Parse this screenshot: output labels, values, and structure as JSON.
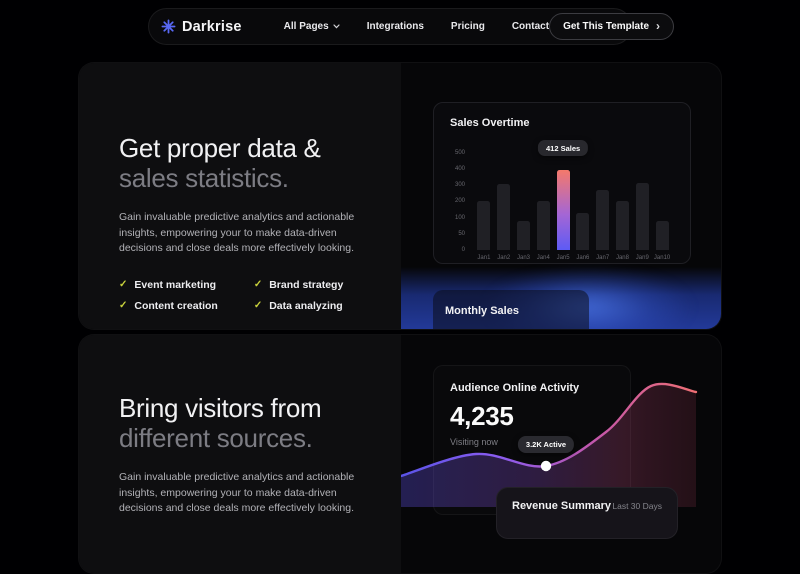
{
  "navbar": {
    "logo_text": "Darkrise",
    "items": [
      {
        "label": "All Pages"
      },
      {
        "label": "Integrations"
      },
      {
        "label": "Pricing"
      },
      {
        "label": "Contact"
      }
    ],
    "cta_label": "Get This Template",
    "cta_chevron": "›"
  },
  "sections": {
    "data": {
      "heading_line1": "Get proper data &",
      "heading_line2": "sales statistics.",
      "paragraph": "Gain invaluable predictive analytics and actionable insights, empowering your to make data-driven decisions and close deals more effectively looking.",
      "checklist_col1": [
        "Event marketing",
        "Content creation"
      ],
      "checklist_col2": [
        "Brand strategy",
        "Data analyzing"
      ],
      "check_glyph": "✓"
    },
    "visitors": {
      "heading_line1": "Bring visitors from",
      "heading_line2": "different sources.",
      "paragraph": "Gain invaluable predictive analytics and actionable insights, empowering your to make data-driven decisions and close deals more effectively looking."
    }
  },
  "monthly_sales_label": "Monthly Sales",
  "audience": {
    "title": "Audience Online Activity",
    "value": "4,235",
    "subtitle": "Visiting now",
    "tooltip": "3.2K Active"
  },
  "revenue": {
    "title": "Revenue Summary",
    "period": "Last 30 Days"
  },
  "colors": {
    "accent_blue": "#5868f5",
    "check_lime": "#c9d23c",
    "bar_default": "#202025",
    "monthly_glow_blue": "#2b4ac0",
    "tooltip_bg": "#28282d"
  },
  "chart_data": [
    {
      "type": "bar",
      "title": "Sales Overtime",
      "categories": [
        "Jan1",
        "Jan2",
        "Jan3",
        "Jan4",
        "Jan5",
        "Jan6",
        "Jan7",
        "Jan8",
        "Jan9",
        "Jan10"
      ],
      "values": [
        250,
        340,
        150,
        250,
        412,
        190,
        310,
        250,
        345,
        150
      ],
      "highlight_index": 4,
      "highlight_label": "412 Sales",
      "y_ticks": [
        "500",
        "400",
        "300",
        "200",
        "100",
        "50",
        "0"
      ],
      "ylim": [
        0,
        500
      ],
      "grid": false,
      "legend": false,
      "highlight_gradient": [
        "#f4796b",
        "#a566d4",
        "#5d5bf5"
      ]
    },
    {
      "type": "area",
      "title": "Audience Online Activity",
      "points": [
        [
          0,
          106
        ],
        [
          75,
          84
        ],
        [
          145,
          96
        ],
        [
          205,
          62
        ],
        [
          250,
          16
        ],
        [
          295,
          22
        ]
      ],
      "marker_index": 2,
      "marker_label": "3.2K Active",
      "stroke_gradient": [
        "#5a54e8",
        "#8b5cf0",
        "#c457a9",
        "#ef6f74"
      ]
    }
  ]
}
